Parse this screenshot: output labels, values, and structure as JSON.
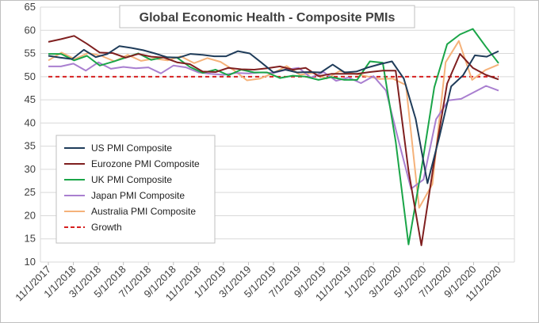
{
  "chart_data": {
    "type": "line",
    "title": "Global Economic Health - Composite PMIs",
    "ylim": [
      10,
      65
    ],
    "yticks": [
      10,
      15,
      20,
      25,
      30,
      35,
      40,
      45,
      50,
      55,
      60,
      65
    ],
    "xticks": [
      "11/1/2017",
      "1/1/2018",
      "3/1/2018",
      "5/1/2018",
      "7/1/2018",
      "9/1/2018",
      "11/1/2018",
      "1/1/2019",
      "3/1/2019",
      "5/1/2019",
      "7/1/2019",
      "9/1/2019",
      "11/1/2019",
      "1/1/2020",
      "3/1/2020",
      "5/1/2020",
      "7/1/2020",
      "9/1/2020",
      "11/1/2020"
    ],
    "x_start": "11/1/2017",
    "x_end": "11/1/2020",
    "grid": true,
    "legend_position": "bottom-left",
    "series": [
      {
        "name": "US PMI Composite",
        "color": "#1f3c5a",
        "style": "solid",
        "values": [
          54.5,
          54.1,
          53.8,
          55.8,
          54.2,
          54.9,
          56.6,
          56.2,
          55.7,
          55.0,
          54.2,
          54.1,
          54.9,
          54.7,
          54.4,
          54.4,
          55.5,
          55.0,
          53.0,
          50.9,
          51.5,
          50.9,
          51.0,
          50.9,
          52.6,
          50.9,
          51.1,
          52.0,
          52.7,
          53.3,
          49.6,
          40.9,
          27.0,
          37.0,
          47.9,
          50.3,
          54.6,
          54.3,
          55.5
        ]
      },
      {
        "name": "Eurozone PMI Composite",
        "color": "#7f1f1f",
        "style": "solid",
        "values": [
          57.5,
          58.1,
          58.8,
          57.1,
          55.2,
          55.1,
          54.1,
          54.9,
          54.3,
          54.1,
          53.1,
          52.7,
          51.1,
          51.0,
          51.9,
          51.6,
          51.5,
          51.8,
          52.2,
          51.5,
          51.9,
          50.1,
          50.6,
          50.6,
          50.6,
          51.0,
          51.3,
          51.3,
          29.7,
          13.6,
          31.9,
          48.5,
          54.9,
          51.9,
          50.4,
          49.4
        ]
      },
      {
        "name": "UK PMI Composite",
        "color": "#1aa548",
        "style": "solid",
        "values": [
          54.9,
          54.9,
          53.5,
          54.5,
          52.4,
          53.2,
          54.1,
          55.0,
          53.6,
          54.2,
          54.1,
          52.1,
          50.8,
          51.5,
          50.3,
          51.5,
          50.9,
          50.9,
          49.7,
          50.2,
          50.0,
          49.3,
          49.9,
          49.3,
          49.3,
          53.3,
          53.0,
          36.0,
          13.8,
          30.0,
          47.7,
          57.0,
          59.1,
          60.3,
          56.5,
          52.9
        ]
      },
      {
        "name": "Japan PMI Composite",
        "color": "#a97fd0",
        "style": "solid",
        "values": [
          52.2,
          52.2,
          52.8,
          51.3,
          53.1,
          51.7,
          52.1,
          51.8,
          52.0,
          50.7,
          52.4,
          52.0,
          50.9,
          50.6,
          50.4,
          50.8,
          50.7,
          50.9,
          50.8,
          51.5,
          51.9,
          49.8,
          51.0,
          49.1,
          49.8,
          48.6,
          50.1,
          47.0,
          36.2,
          25.8,
          27.8,
          40.8,
          44.9,
          45.2,
          46.6,
          48.0,
          47.0
        ]
      },
      {
        "name": "Australia PMI Composite",
        "color": "#f5b27a",
        "style": "solid",
        "values": [
          53.5,
          55.2,
          53.8,
          55.1,
          54.5,
          53.3,
          54.7,
          53.4,
          53.9,
          53.5,
          54.4,
          52.9,
          54.0,
          53.2,
          51.4,
          49.2,
          49.6,
          50.8,
          52.3,
          50.4,
          50.8,
          49.6,
          51.2,
          50.7,
          50.1,
          49.5,
          49.6,
          48.2,
          21.7,
          26.8,
          53.1,
          57.7,
          49.3,
          51.4,
          52.6
        ]
      },
      {
        "name": "Growth",
        "color": "#d62020",
        "style": "dashed",
        "constant": 50
      }
    ]
  }
}
